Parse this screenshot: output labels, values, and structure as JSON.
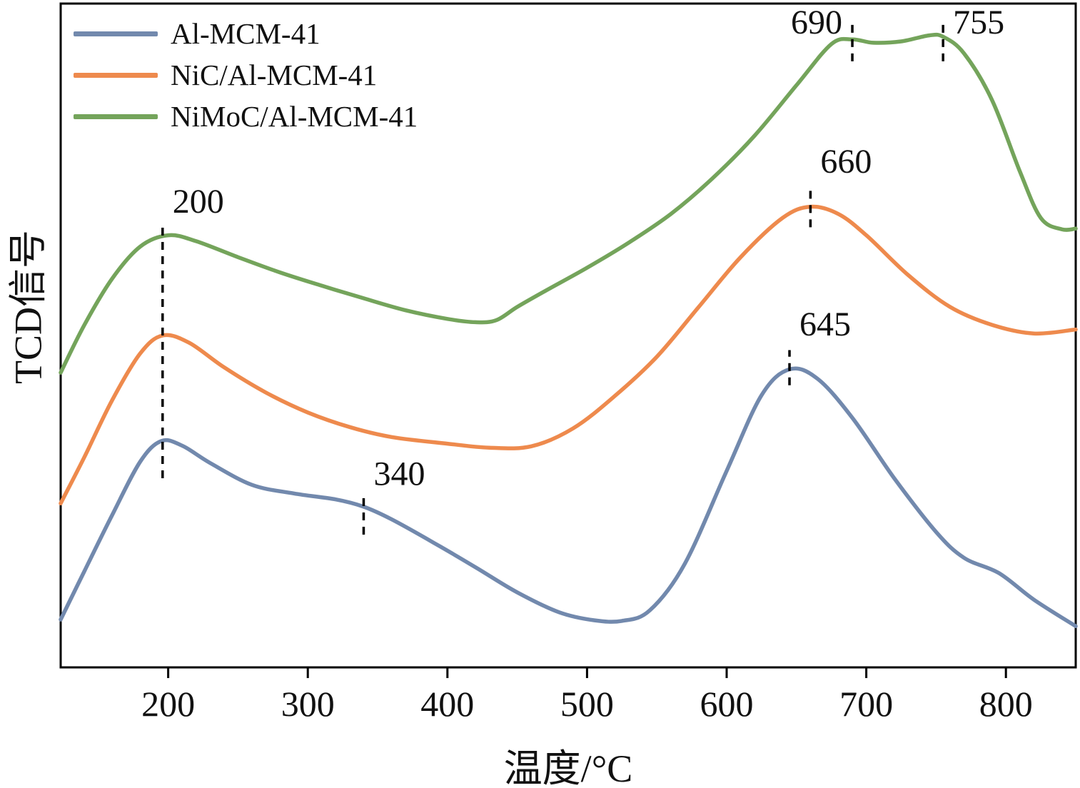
{
  "figure": {
    "background": "#ffffff",
    "axis_color": "#000000"
  },
  "chart_data": {
    "type": "line",
    "title": "",
    "xlabel": "温度/°C",
    "ylabel": "TCD信号",
    "xlim": [
      123,
      850
    ],
    "ylim": [
      0,
      100
    ],
    "y_units": "arbitrary TCD signal (curves vertically offset)",
    "x_tick_values": [
      200,
      300,
      400,
      500,
      600,
      700,
      800
    ],
    "grid": false,
    "legend_position": "top-left",
    "series": [
      {
        "name": "Al-MCM-41",
        "color": "#7289ad",
        "points": [
          [
            123,
            7.2
          ],
          [
            140,
            14.5
          ],
          [
            160,
            23.0
          ],
          [
            180,
            31.0
          ],
          [
            195,
            34.1
          ],
          [
            210,
            33.4
          ],
          [
            230,
            30.8
          ],
          [
            260,
            27.5
          ],
          [
            290,
            26.2
          ],
          [
            320,
            25.3
          ],
          [
            340,
            24.2
          ],
          [
            360,
            22.3
          ],
          [
            390,
            18.8
          ],
          [
            420,
            15.1
          ],
          [
            450,
            11.3
          ],
          [
            480,
            8.3
          ],
          [
            505,
            7.1
          ],
          [
            525,
            7.0
          ],
          [
            545,
            8.6
          ],
          [
            570,
            15.6
          ],
          [
            600,
            29.6
          ],
          [
            625,
            41.0
          ],
          [
            645,
            44.9
          ],
          [
            665,
            43.5
          ],
          [
            690,
            37.6
          ],
          [
            720,
            28.5
          ],
          [
            750,
            20.4
          ],
          [
            770,
            16.5
          ],
          [
            795,
            14.2
          ],
          [
            820,
            10.2
          ],
          [
            850,
            6.2
          ]
        ]
      },
      {
        "name": "NiC/Al-MCM-41",
        "color": "#ee8a4d",
        "points": [
          [
            123,
            24.7
          ],
          [
            140,
            31.7
          ],
          [
            160,
            40.3
          ],
          [
            180,
            47.3
          ],
          [
            196,
            50.0
          ],
          [
            215,
            48.9
          ],
          [
            240,
            45.2
          ],
          [
            270,
            41.4
          ],
          [
            300,
            38.4
          ],
          [
            330,
            36.2
          ],
          [
            360,
            34.7
          ],
          [
            400,
            33.7
          ],
          [
            430,
            33.1
          ],
          [
            460,
            33.3
          ],
          [
            490,
            36.0
          ],
          [
            520,
            40.9
          ],
          [
            550,
            46.8
          ],
          [
            580,
            54.3
          ],
          [
            610,
            61.8
          ],
          [
            640,
            67.7
          ],
          [
            660,
            69.4
          ],
          [
            680,
            68.3
          ],
          [
            700,
            65.1
          ],
          [
            730,
            59.1
          ],
          [
            760,
            54.3
          ],
          [
            790,
            51.6
          ],
          [
            820,
            50.3
          ],
          [
            850,
            50.9
          ]
        ]
      },
      {
        "name": "NiMoC/Al-MCM-41",
        "color": "#74a45b",
        "points": [
          [
            123,
            44.4
          ],
          [
            140,
            51.6
          ],
          [
            160,
            58.6
          ],
          [
            180,
            63.4
          ],
          [
            200,
            65.1
          ],
          [
            220,
            64.2
          ],
          [
            250,
            61.8
          ],
          [
            280,
            59.5
          ],
          [
            310,
            57.5
          ],
          [
            340,
            55.6
          ],
          [
            370,
            53.8
          ],
          [
            400,
            52.5
          ],
          [
            420,
            52.0
          ],
          [
            435,
            52.3
          ],
          [
            450,
            54.3
          ],
          [
            470,
            56.7
          ],
          [
            500,
            60.2
          ],
          [
            530,
            64.0
          ],
          [
            560,
            68.3
          ],
          [
            590,
            73.7
          ],
          [
            620,
            80.1
          ],
          [
            650,
            87.7
          ],
          [
            675,
            93.9
          ],
          [
            690,
            94.6
          ],
          [
            705,
            94.1
          ],
          [
            725,
            94.3
          ],
          [
            745,
            95.2
          ],
          [
            755,
            95.0
          ],
          [
            770,
            92.5
          ],
          [
            790,
            85.5
          ],
          [
            810,
            74.7
          ],
          [
            825,
            67.7
          ],
          [
            840,
            66.0
          ],
          [
            850,
            66.1
          ]
        ]
      }
    ],
    "annotations": [
      {
        "label": "200",
        "x": 196,
        "y_from": 28.5,
        "y_to": 66.5,
        "label_y": 68.5,
        "label_side": "right"
      },
      {
        "label": "340",
        "x": 340,
        "y_from": 20.0,
        "y_to": 25.5,
        "label_y": 27.5,
        "label_side": "right"
      },
      {
        "label": "645",
        "x": 645,
        "y_from": 42.5,
        "y_to": 47.8,
        "label_y": 50.0,
        "label_side": "right"
      },
      {
        "label": "660",
        "x": 660,
        "y_from": 66.3,
        "y_to": 72.0,
        "label_y": 74.5,
        "label_side": "right"
      },
      {
        "label": "690",
        "x": 690,
        "y_from": 91.3,
        "y_to": 97.3,
        "label_y": 95.5,
        "label_side": "left"
      },
      {
        "label": "755",
        "x": 755,
        "y_from": 91.3,
        "y_to": 97.0,
        "label_y": 95.5,
        "label_side": "right"
      }
    ]
  }
}
